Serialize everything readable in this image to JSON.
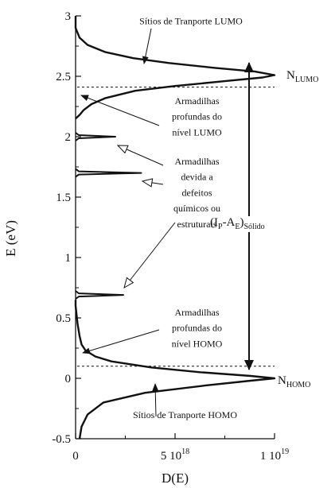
{
  "chart_data": {
    "type": "line",
    "xlabel": "D(E)",
    "ylabel": "E (eV)",
    "xlim": [
      0,
      10000000000000000000
    ],
    "ylim": [
      -0.5,
      3
    ],
    "grid": false,
    "x_ticks": [
      {
        "value": 0,
        "label": "0"
      },
      {
        "value": 5000000000000000000,
        "label": "5 10",
        "exp": "18"
      },
      {
        "value": 10000000000000000000,
        "label": "1 10",
        "exp": "19"
      }
    ],
    "y_ticks": [
      {
        "value": -0.5,
        "label": "-0.5"
      },
      {
        "value": 0,
        "label": "0"
      },
      {
        "value": 0.5,
        "label": "0.5"
      },
      {
        "value": 1,
        "label": "1"
      },
      {
        "value": 1.5,
        "label": "1.5"
      },
      {
        "value": 2,
        "label": "2"
      },
      {
        "value": 2.5,
        "label": "2.5"
      },
      {
        "value": 3,
        "label": "3"
      }
    ],
    "series": [
      {
        "curve": "homo-gaussian",
        "points": [
          [
            0.2,
            -0.5
          ],
          [
            0.3,
            -0.4
          ],
          [
            0.6,
            -0.3
          ],
          [
            1.4,
            -0.2
          ],
          [
            3.5,
            -0.12
          ],
          [
            6.5,
            -0.06
          ],
          [
            8.8,
            -0.02
          ],
          [
            10.0,
            0.0
          ],
          [
            8.8,
            0.02
          ],
          [
            6.3,
            0.05
          ],
          [
            3.8,
            0.09
          ],
          [
            1.8,
            0.14
          ],
          [
            1.0,
            0.18
          ],
          [
            0.5,
            0.23
          ],
          [
            0.3,
            0.28
          ],
          [
            0.2,
            0.35
          ],
          [
            0.1,
            0.45
          ],
          [
            0.0,
            0.6
          ],
          [
            0.0,
            0.65
          ]
        ]
      },
      {
        "curve": "lumo-gaussian",
        "points": [
          [
            0.0,
            2.15
          ],
          [
            0.2,
            2.18
          ],
          [
            0.4,
            2.22
          ],
          [
            0.8,
            2.27
          ],
          [
            1.5,
            2.32
          ],
          [
            3.0,
            2.38
          ],
          [
            5.0,
            2.42
          ],
          [
            7.5,
            2.46
          ],
          [
            9.4,
            2.49
          ],
          [
            10.0,
            2.51
          ],
          [
            9.0,
            2.54
          ],
          [
            7.0,
            2.57
          ],
          [
            4.7,
            2.61
          ],
          [
            2.9,
            2.65
          ],
          [
            1.5,
            2.7
          ],
          [
            0.6,
            2.76
          ],
          [
            0.2,
            2.82
          ],
          [
            0.0,
            2.9
          ],
          [
            0.0,
            3.0
          ]
        ]
      },
      {
        "curve": "trap-peaks",
        "peaks": [
          {
            "center": 0.69,
            "height": 2.4
          },
          {
            "center": 1.7,
            "height": 3.3
          },
          {
            "center": 2.0,
            "height": 2.0
          }
        ]
      }
    ],
    "reference_lines": [
      {
        "y": 2.41,
        "style": "dashed"
      },
      {
        "y": 0.1,
        "style": "dashed"
      }
    ],
    "annotations": [
      {
        "text": "Sítios de Tranporte LUMO",
        "x": 5.8,
        "y": 2.93
      },
      {
        "text": "Sítios de Tranporte HOMO",
        "x": 5.5,
        "y": -0.33
      },
      {
        "text": "Armadilhas",
        "x": 6.1,
        "y": 2.27
      },
      {
        "text": "profundas do",
        "x": 6.1,
        "y": 2.14
      },
      {
        "text": "nível LUMO",
        "x": 6.1,
        "y": 2.01
      },
      {
        "text": "Armadilhas",
        "x": 6.1,
        "y": 0.52
      },
      {
        "text": "profundas do",
        "x": 6.1,
        "y": 0.39
      },
      {
        "text": "nível HOMO",
        "x": 6.1,
        "y": 0.26
      },
      {
        "text": "Armadilhas",
        "x": 6.1,
        "y": 1.77
      },
      {
        "text": "devida a",
        "x": 6.1,
        "y": 1.64
      },
      {
        "text": "defeitos",
        "x": 6.1,
        "y": 1.51
      },
      {
        "text": "químicos ou",
        "x": 6.1,
        "y": 1.38
      },
      {
        "text": "estruturais",
        "x": 6.1,
        "y": 1.25
      }
    ],
    "labels": {
      "n_lumo": {
        "main": "N",
        "sub": "LUMO"
      },
      "n_homo": {
        "main": "N",
        "sub": "HOMO"
      },
      "gap": {
        "open": "(I",
        "ip_sub": "P",
        "mid": "-A",
        "ae_sub": "E",
        "close": ")",
        "phase_sub": "Sólido"
      }
    }
  }
}
